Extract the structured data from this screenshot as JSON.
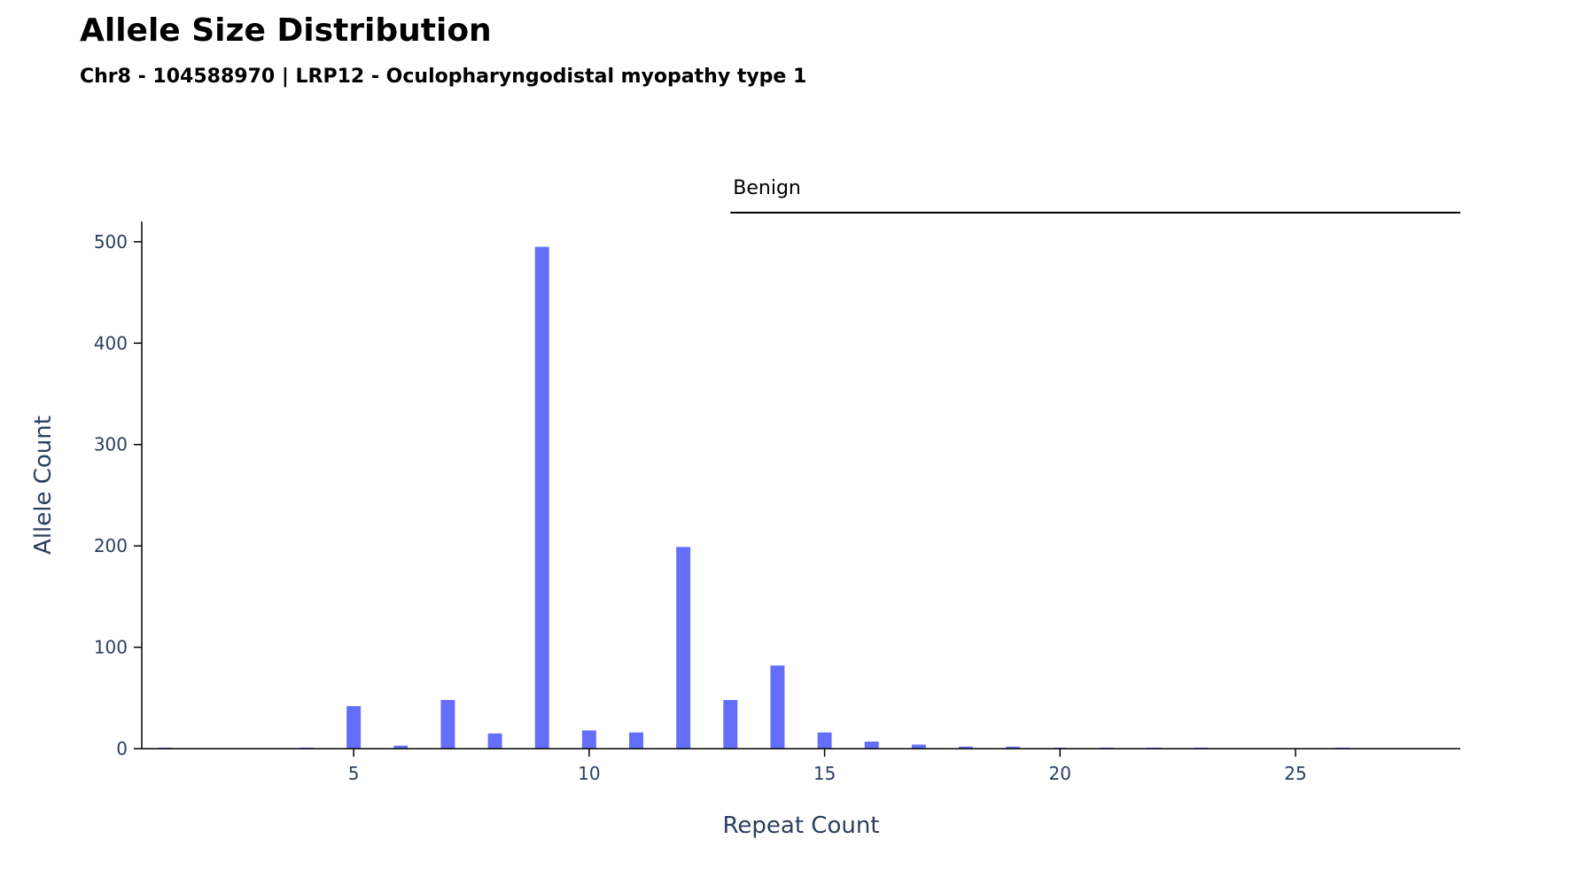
{
  "header": {
    "title": "Allele Size Distribution",
    "subtitle": "Chr8 - 104588970 | LRP12 - Oculopharyngodistal myopathy type 1"
  },
  "chart_data": {
    "type": "bar",
    "title": "Allele Size Distribution",
    "subtitle": "Chr8 - 104588970 | LRP12 - Oculopharyngodistal myopathy type 1",
    "xlabel": "Repeat Count",
    "ylabel": "Allele Count",
    "xlim": [
      0.5,
      28.5
    ],
    "ylim": [
      0,
      520
    ],
    "xticks": [
      5,
      10,
      15,
      20,
      25
    ],
    "yticks": [
      0,
      100,
      200,
      300,
      400,
      500
    ],
    "bar_color": "#636efa",
    "grid": false,
    "x": [
      1,
      4,
      5,
      6,
      7,
      8,
      9,
      10,
      11,
      12,
      13,
      14,
      15,
      16,
      17,
      18,
      19,
      20,
      21,
      22,
      23,
      26
    ],
    "values": [
      1,
      1,
      42,
      3,
      48,
      15,
      495,
      18,
      16,
      199,
      48,
      82,
      16,
      7,
      4,
      2,
      2,
      1,
      1,
      1,
      1,
      1
    ],
    "regions": [
      {
        "label": "Benign",
        "x_start": 13,
        "x_end": 28.5
      }
    ]
  }
}
